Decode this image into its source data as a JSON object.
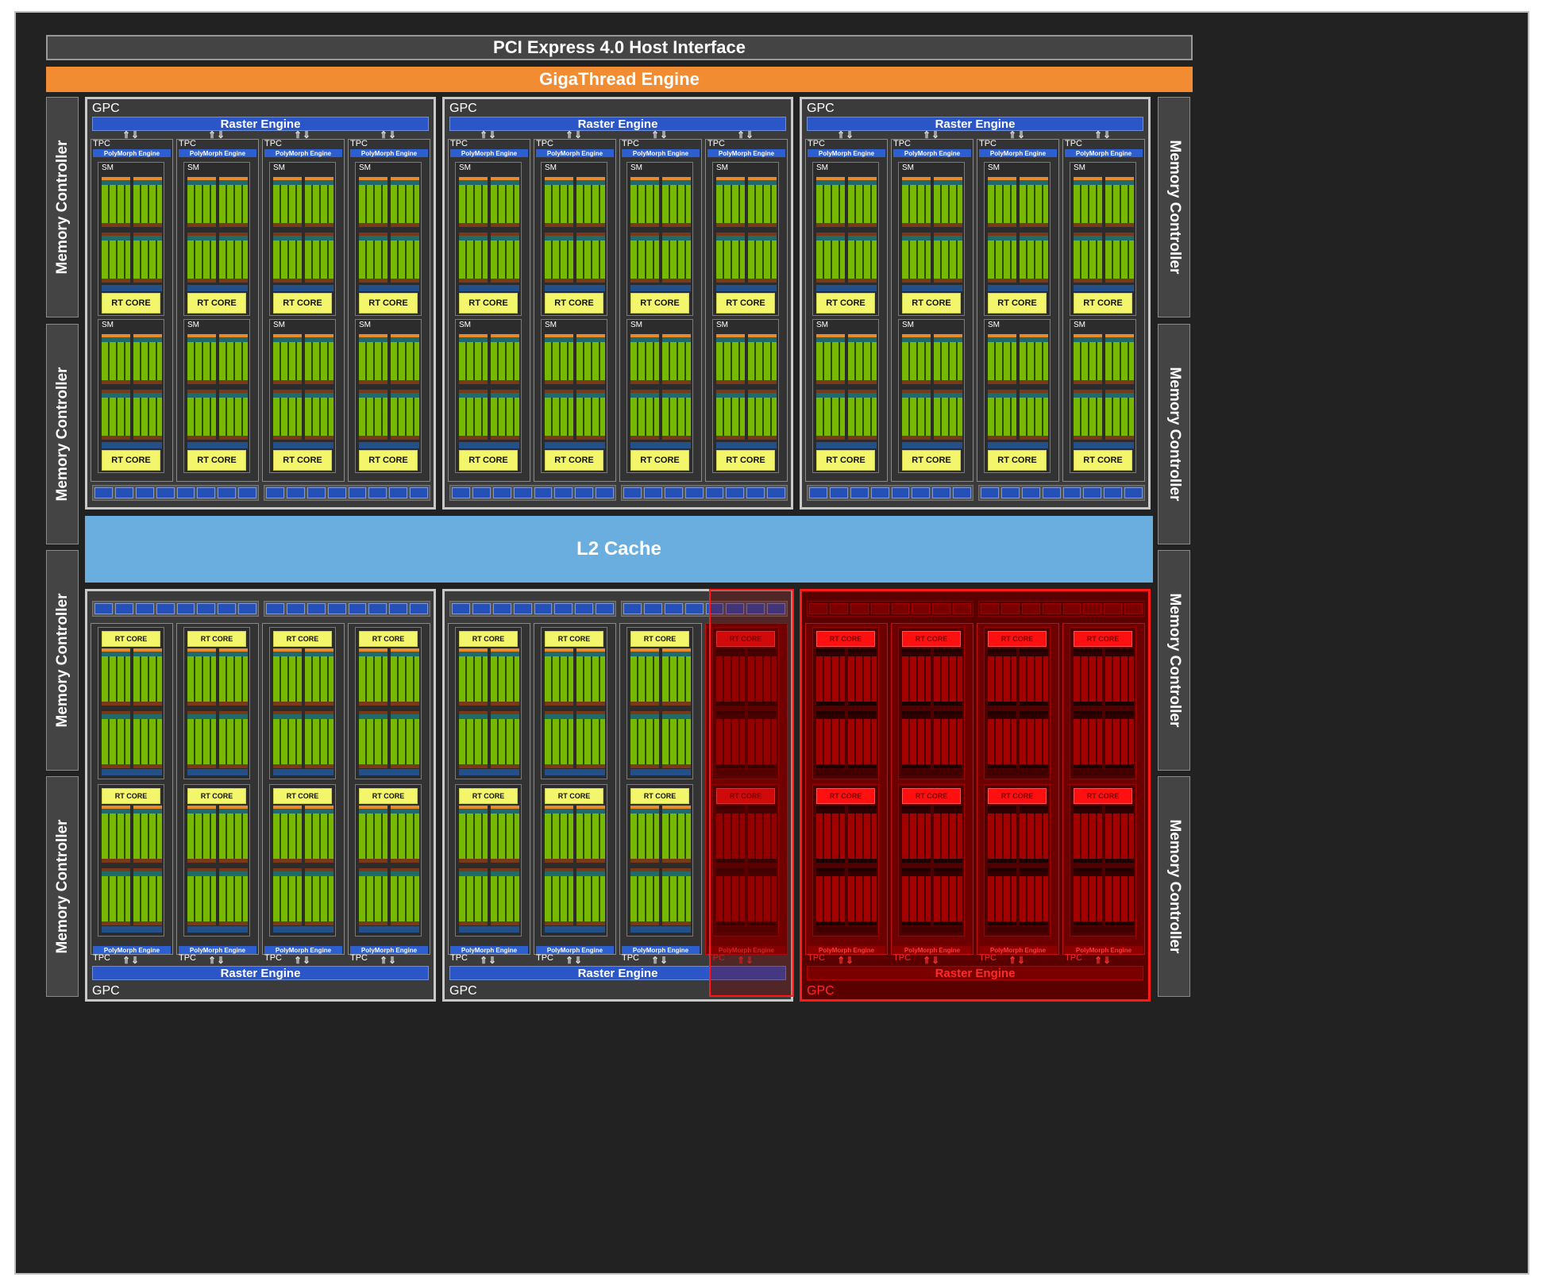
{
  "pci": "PCI Express 4.0 Host Interface",
  "giga": "GigaThread Engine",
  "l2": "L2 Cache",
  "memory_controller": "Memory Controller",
  "gpc_label": "GPC",
  "raster_label": "Raster Engine",
  "tpc_label": "TPC",
  "polymorph_label": "PolyMorph Engine",
  "sm_label": "SM",
  "rt_label": "RT CORE",
  "colors": {
    "background": "#222222",
    "giga": "#f28c33",
    "l2": "#6aaee0",
    "raster": "#2a56c8",
    "rt_core": "#f3f56b",
    "cuda_core": "#76b900",
    "disabled": "#ff1a1a"
  },
  "layout_info": {
    "gpc_count": 6,
    "tpcs_per_gpc": 4,
    "sms_per_tpc": 2,
    "disabled_gpc": "bottom-right",
    "disabled_tpc": "bottom-middle, 4th TPC"
  }
}
